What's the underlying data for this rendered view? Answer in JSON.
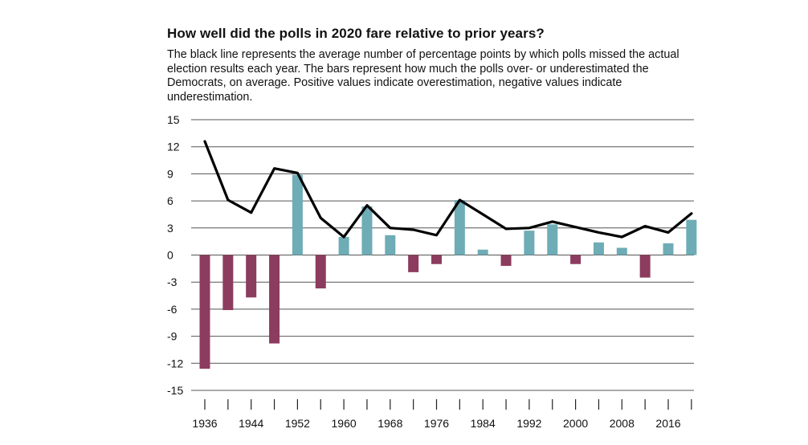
{
  "title": "How well did the polls in 2020 fare relative to prior years?",
  "subtitle": "The black line represents the average number of percentage points by which polls missed the actual election results each year. The bars represent how much the polls over- or underestimated the Democrats, on average. Positive values indicate overestimation, negative values indicate underestimation.",
  "chart_data": {
    "type": "bar",
    "title": "How well did the polls in 2020 fare relative to prior years?",
    "xlabel": "",
    "ylabel": "",
    "ylim": [
      -15,
      15
    ],
    "yticks": [
      15,
      12,
      9,
      6,
      3,
      0,
      -3,
      -6,
      -9,
      -12,
      -15
    ],
    "xtick_labels": [
      "1936",
      "1944",
      "1952",
      "1960",
      "1968",
      "1976",
      "1984",
      "1992",
      "2000",
      "2008",
      "2016"
    ],
    "grid": true,
    "categories": [
      "1936",
      "1940",
      "1944",
      "1948",
      "1952",
      "1956",
      "1960",
      "1964",
      "1968",
      "1972",
      "1976",
      "1980",
      "1984",
      "1988",
      "1992",
      "1996",
      "2000",
      "2004",
      "2008",
      "2012",
      "2016",
      "2020"
    ],
    "series": [
      {
        "kind": "bar",
        "values": [
          -12.6,
          -6.1,
          -4.7,
          -9.8,
          8.9,
          -3.7,
          2.0,
          5.4,
          2.2,
          -1.9,
          -1.0,
          6.1,
          0.6,
          -1.2,
          2.7,
          3.4,
          -1.0,
          1.4,
          0.8,
          -2.5,
          1.3,
          3.9
        ]
      },
      {
        "kind": "line",
        "values": [
          12.6,
          6.1,
          4.7,
          9.6,
          9.1,
          4.1,
          2.0,
          5.5,
          3.0,
          2.8,
          2.2,
          6.1,
          4.5,
          2.9,
          3.0,
          3.7,
          3.1,
          2.5,
          2.0,
          3.2,
          2.5,
          4.6
        ]
      }
    ],
    "colors": {
      "positive_bar": "#6eacb6",
      "negative_bar": "#8c3c5e",
      "line": "#000000",
      "grid": "#555555"
    }
  }
}
